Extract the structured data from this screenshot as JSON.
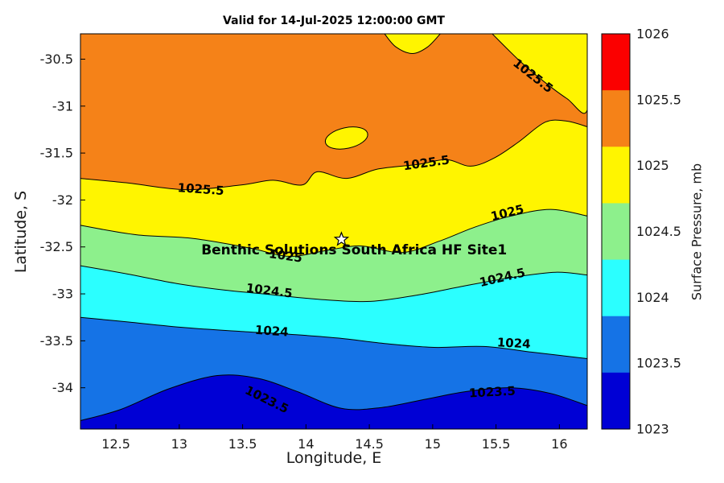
{
  "chart_data": {
    "type": "filled-contour",
    "title": "Valid for 14-Jul-2025 12:00:00 GMT",
    "xlabel": "Longitude, E",
    "ylabel": "Latitude, S",
    "units": "mb",
    "xlim": [
      12.22,
      16.22
    ],
    "ylim": [
      -34.44,
      -30.23
    ],
    "x_ticks": {
      "values": [
        12.5,
        13,
        13.5,
        14,
        14.5,
        15,
        15.5,
        16
      ],
      "labels": [
        "12.5",
        "13",
        "13.5",
        "14",
        "14.5",
        "15",
        "15.5",
        "16"
      ]
    },
    "y_ticks": {
      "values": [
        -30.5,
        -31,
        -31.5,
        -32,
        -32.5,
        -33,
        -33.5,
        -34
      ],
      "labels": [
        "-30.5",
        "-31",
        "-31.5",
        "-32",
        "-32.5",
        "-33",
        "-33.5",
        "-34"
      ]
    },
    "contour_levels": [
      1023.5,
      1024,
      1024.5,
      1025,
      1025.5
    ],
    "base_band": {
      "range": "1025.5-1026",
      "color": "#F58218"
    },
    "boundaries": [
      {
        "level": 1025.5,
        "fill_below": "#FFF500",
        "points": [
          [
            12.22,
            -31.77
          ],
          [
            12.6,
            -31.82
          ],
          [
            13.05,
            -31.89
          ],
          [
            13.49,
            -31.84
          ],
          [
            13.74,
            -31.79
          ],
          [
            13.97,
            -31.84
          ],
          [
            14.09,
            -31.7
          ],
          [
            14.32,
            -31.77
          ],
          [
            14.57,
            -31.67
          ],
          [
            14.89,
            -31.62
          ],
          [
            15.11,
            -31.57
          ],
          [
            15.3,
            -31.64
          ],
          [
            15.49,
            -31.55
          ],
          [
            15.68,
            -31.38
          ],
          [
            15.89,
            -31.17
          ],
          [
            16.06,
            -31.16
          ],
          [
            16.22,
            -31.22
          ]
        ]
      },
      {
        "level": 1025,
        "fill_below": "#8DF08C",
        "points": [
          [
            12.22,
            -32.27
          ],
          [
            12.66,
            -32.37
          ],
          [
            13.11,
            -32.41
          ],
          [
            13.55,
            -32.51
          ],
          [
            13.87,
            -32.6
          ],
          [
            14.19,
            -32.53
          ],
          [
            14.44,
            -32.49
          ],
          [
            14.76,
            -32.56
          ],
          [
            15.05,
            -32.44
          ],
          [
            15.33,
            -32.29
          ],
          [
            15.62,
            -32.17
          ],
          [
            15.93,
            -32.1
          ],
          [
            16.22,
            -32.17
          ]
        ]
      },
      {
        "level": 1024.5,
        "fill_below": "#2BFFFF",
        "points": [
          [
            12.22,
            -32.7
          ],
          [
            12.6,
            -32.79
          ],
          [
            12.98,
            -32.89
          ],
          [
            13.36,
            -32.96
          ],
          [
            13.74,
            -33.01
          ],
          [
            14.12,
            -33.06
          ],
          [
            14.51,
            -33.08
          ],
          [
            14.89,
            -33.01
          ],
          [
            15.27,
            -32.91
          ],
          [
            15.65,
            -32.82
          ],
          [
            15.97,
            -32.77
          ],
          [
            16.22,
            -32.8
          ]
        ]
      },
      {
        "level": 1024,
        "fill_below": "#1573E6",
        "points": [
          [
            12.22,
            -33.25
          ],
          [
            12.6,
            -33.3
          ],
          [
            13.05,
            -33.36
          ],
          [
            13.49,
            -33.4
          ],
          [
            13.87,
            -33.43
          ],
          [
            14.25,
            -33.47
          ],
          [
            14.63,
            -33.53
          ],
          [
            15.01,
            -33.57
          ],
          [
            15.4,
            -33.56
          ],
          [
            15.78,
            -33.62
          ],
          [
            16.03,
            -33.66
          ],
          [
            16.22,
            -33.69
          ]
        ]
      },
      {
        "level": 1023.5,
        "fill_below": "#0000D5",
        "points": [
          [
            12.22,
            -34.35
          ],
          [
            12.54,
            -34.23
          ],
          [
            12.92,
            -34.01
          ],
          [
            13.3,
            -33.87
          ],
          [
            13.62,
            -33.9
          ],
          [
            13.93,
            -34.04
          ],
          [
            14.28,
            -34.22
          ],
          [
            14.6,
            -34.21
          ],
          [
            14.95,
            -34.12
          ],
          [
            15.27,
            -34.04
          ],
          [
            15.62,
            -34.0
          ],
          [
            15.93,
            -34.06
          ],
          [
            16.22,
            -34.19
          ]
        ]
      }
    ],
    "patches": [
      {
        "shape": "polygon",
        "level": "<=1025.5",
        "color": "#FFF500",
        "points": [
          [
            15.47,
            -30.23
          ],
          [
            15.68,
            -30.51
          ],
          [
            15.87,
            -30.73
          ],
          [
            16.06,
            -30.92
          ],
          [
            16.22,
            -31.04
          ],
          [
            16.22,
            -30.23
          ]
        ]
      },
      {
        "shape": "polygon",
        "level": "<=1025.5",
        "color": "#FFF500",
        "points": [
          [
            14.62,
            -30.23
          ],
          [
            14.71,
            -30.37
          ],
          [
            14.84,
            -30.44
          ],
          [
            14.96,
            -30.37
          ],
          [
            15.06,
            -30.23
          ]
        ]
      },
      {
        "shape": "ellipse",
        "level": "<=1025.5",
        "color": "#FFF500",
        "center": [
          14.32,
          -31.34
        ],
        "rx": 0.17,
        "ry": 0.11,
        "rot": -12
      }
    ],
    "contour_labels": [
      {
        "text": "1025.5",
        "lon": 13.17,
        "lat": -31.89,
        "rot": 4
      },
      {
        "text": "1025.5",
        "lon": 14.95,
        "lat": -31.61,
        "rot": -8
      },
      {
        "text": "1025.5",
        "lon": 15.79,
        "lat": -30.68,
        "rot": 38
      },
      {
        "text": "1025",
        "lon": 15.59,
        "lat": -32.14,
        "rot": -14
      },
      {
        "text": "1025",
        "lon": 13.84,
        "lat": -32.6,
        "rot": 8
      },
      {
        "text": "1024.5",
        "lon": 13.71,
        "lat": -32.97,
        "rot": 7
      },
      {
        "text": "1024.5",
        "lon": 15.55,
        "lat": -32.83,
        "rot": -13
      },
      {
        "text": "1024",
        "lon": 13.73,
        "lat": -33.4,
        "rot": 4
      },
      {
        "text": "1024",
        "lon": 15.64,
        "lat": -33.53,
        "rot": 3
      },
      {
        "text": "1023.5",
        "lon": 13.69,
        "lat": -34.13,
        "rot": 26
      },
      {
        "text": "1023.5",
        "lon": 15.47,
        "lat": -34.05,
        "rot": -3
      }
    ],
    "marker": {
      "type": "star",
      "lon": 14.28,
      "lat": -32.42,
      "label": "Benthic Solutions South Africa HF Site1",
      "label_lon": 14.38,
      "label_lat": -32.58
    },
    "colorbar": {
      "label": "Surface Pressure, mb",
      "tick_labels": [
        "1026",
        "1025.5",
        "1025",
        "1024.5",
        "1024",
        "1023.5",
        "1023"
      ],
      "segments_top_to_bottom": [
        {
          "range": ">=1026",
          "color": "#FB0000"
        },
        {
          "range": "1025.5-1026",
          "color": "#F58218"
        },
        {
          "range": "1025-1025.5",
          "color": "#FFF500"
        },
        {
          "range": "1024.5-1025",
          "color": "#8DF08C"
        },
        {
          "range": "1024-1024.5",
          "color": "#2BFFFF"
        },
        {
          "range": "1023.5-1024",
          "color": "#1573E6"
        },
        {
          "range": "1023-1023.5",
          "color": "#0000D5"
        }
      ]
    }
  }
}
